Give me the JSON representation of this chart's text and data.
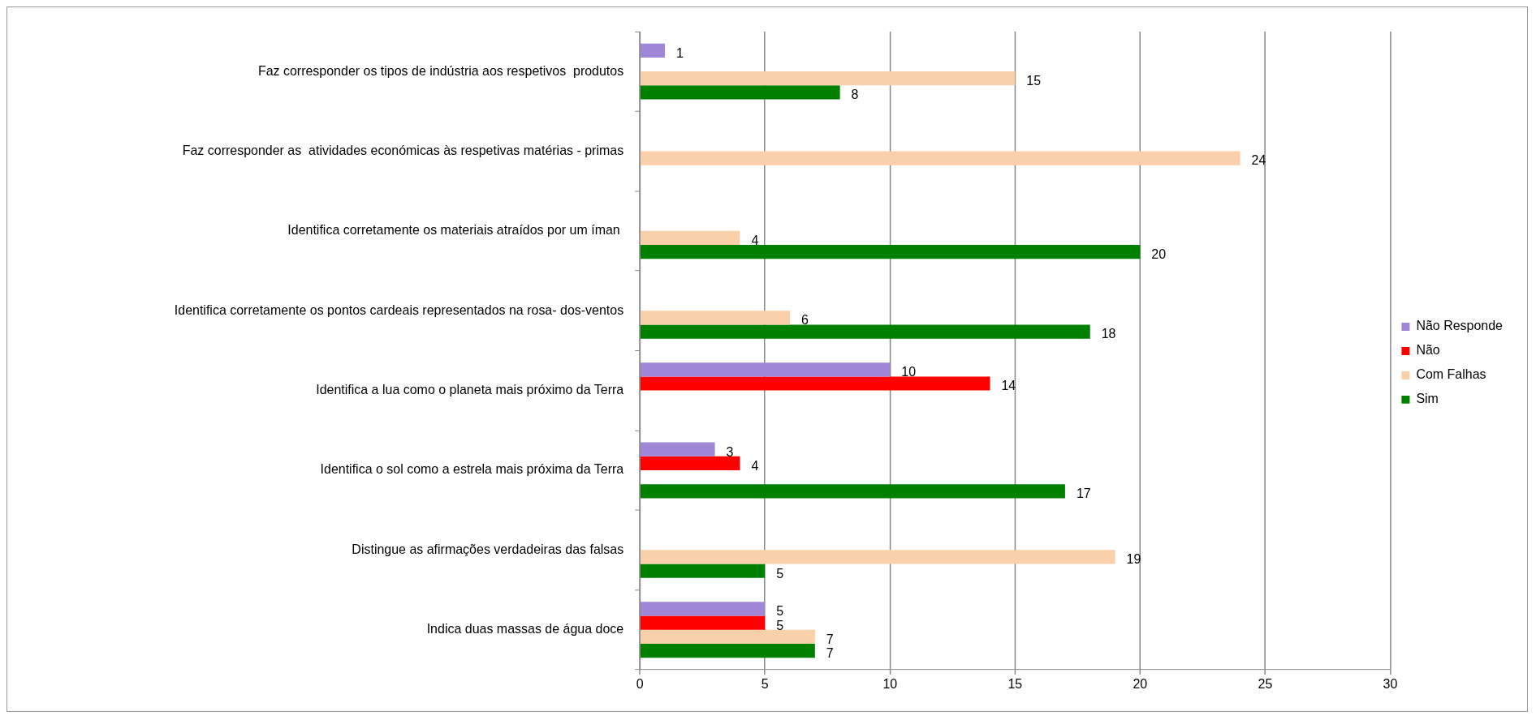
{
  "chart_data": {
    "type": "bar",
    "orientation": "horizontal",
    "categories": [
      "Faz corresponder os tipos de indústria aos respetivos  produtos",
      "Faz corresponder as  atividades económicas às respetivas matérias - primas",
      "Identifica corretamente os materiais atraídos por um íman ",
      "Identifica corretamente os pontos cardeais representados na rosa- dos-ventos",
      "Identifica a lua como o planeta mais próximo da Terra",
      "Identifica o sol como a estrela mais próxima da Terra",
      "Distingue as afirmações verdadeiras das falsas",
      "Indica duas massas de água doce"
    ],
    "series": [
      {
        "name": "Não Responde",
        "color": "#9f86d6",
        "values": [
          1,
          null,
          null,
          null,
          10,
          3,
          null,
          5
        ]
      },
      {
        "name": "Não",
        "color": "#ff0000",
        "values": [
          null,
          null,
          null,
          null,
          14,
          4,
          null,
          5
        ]
      },
      {
        "name": "Com Falhas",
        "color": "#fad0aa",
        "values": [
          15,
          24,
          4,
          6,
          null,
          null,
          19,
          7
        ]
      },
      {
        "name": "Sim",
        "color": "#008000",
        "values": [
          8,
          null,
          20,
          18,
          null,
          17,
          5,
          7
        ]
      }
    ],
    "xlim": [
      0,
      30
    ],
    "xticks": [
      0,
      5,
      10,
      15,
      20,
      25,
      30
    ],
    "grid": "x",
    "legend": "right",
    "data_labels": true
  }
}
